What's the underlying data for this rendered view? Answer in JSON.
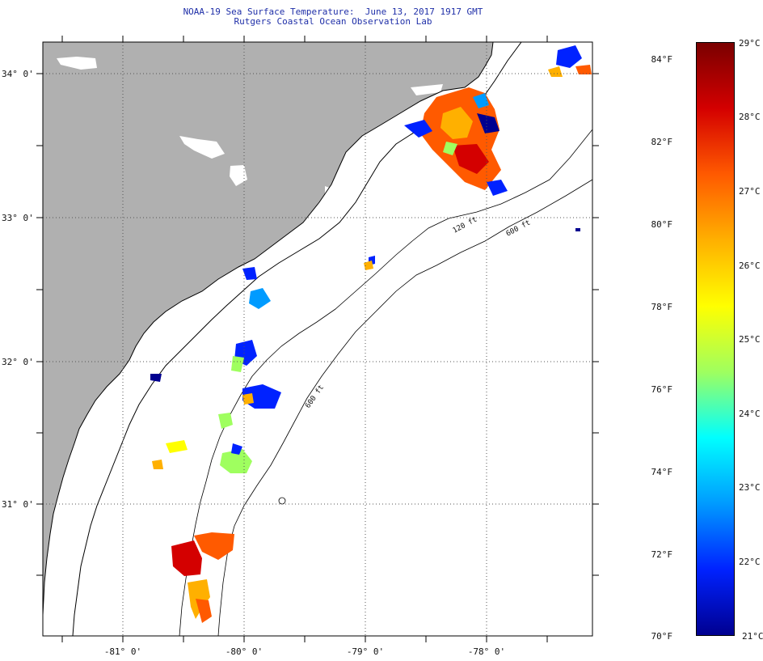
{
  "title_line1": "NOAA-19 Sea Surface Temperature:  June 13, 2017 1917 GMT",
  "title_line2": "Rutgers Coastal Ocean Observation Lab",
  "lat_labels": [
    "34° 0'",
    "33° 0'",
    "32° 0'",
    "31° 0'"
  ],
  "lon_labels": [
    "-81° 0'",
    "-80° 0'",
    "-79° 0'",
    "-78° 0'"
  ],
  "isobath_labels": [
    "120 ft",
    "600 ft",
    "600 ft"
  ],
  "colorbar": {
    "fahrenheit": [
      "84°F",
      "82°F",
      "80°F",
      "78°F",
      "76°F",
      "74°F",
      "72°F",
      "70°F"
    ],
    "celsius": [
      "29°C",
      "28°C",
      "27°C",
      "26°C",
      "25°C",
      "24°C",
      "23°C",
      "22°C",
      "21°C"
    ],
    "colors": [
      "#7a0000",
      "#d40000",
      "#ff5a00",
      "#ffb000",
      "#ffff00",
      "#9fff5f",
      "#00ffff",
      "#009bff",
      "#0022ff",
      "#000090"
    ]
  },
  "colors": {
    "land": "#b0b0b0",
    "ocean": "#ffffff",
    "title": "#1f2fa8"
  }
}
